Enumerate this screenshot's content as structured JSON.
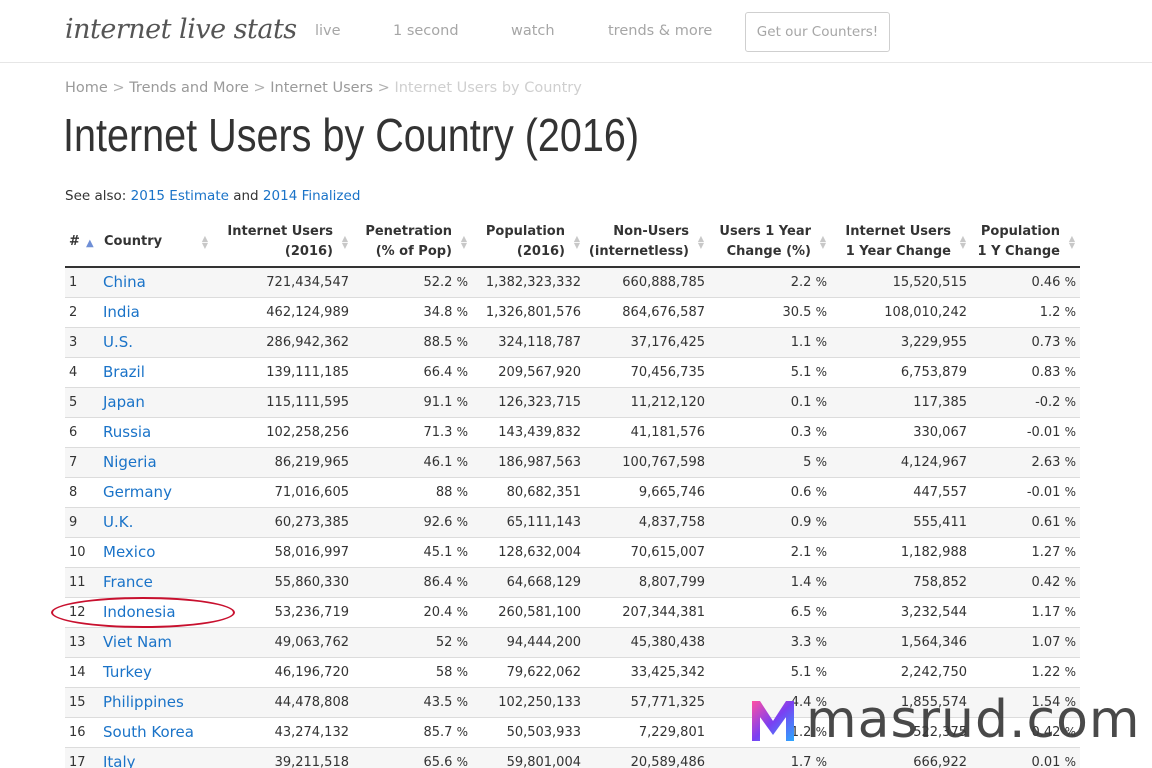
{
  "nav": {
    "logo": "internet live stats",
    "links": [
      "live",
      "1 second",
      "watch",
      "trends & more"
    ],
    "cta": "Get our Counters!"
  },
  "breadcrumb": {
    "items": [
      "Home",
      "Trends and More",
      "Internet Users"
    ],
    "current": "Internet Users by Country",
    "separator": ">"
  },
  "page": {
    "title": "Internet Users by Country (2016)",
    "see_also_prefix": "See also:",
    "link_2015": "2015 Estimate",
    "and": "and",
    "link_2014": "2014 Finalized"
  },
  "table": {
    "headers": {
      "num": "#",
      "country": "Country",
      "internet_users": [
        "Internet Users",
        "(2016)"
      ],
      "penetration": [
        "Penetration",
        "(% of Pop)"
      ],
      "population": [
        "Population",
        "(2016)"
      ],
      "non_users": [
        "Non-Users",
        "(internetless)"
      ],
      "users_change": [
        "Users 1 Year",
        "Change (%)"
      ],
      "iu_change": [
        "Internet Users",
        "1 Year Change"
      ],
      "pop_change": [
        "Population",
        "1 Y Change"
      ]
    },
    "rows": [
      {
        "num": "1",
        "country": "China",
        "users": "721,434,547",
        "pen": "52.2",
        "pop": "1,382,323,332",
        "non": "660,888,785",
        "uch": "2.2",
        "iuc": "15,520,515",
        "pch": "0.46"
      },
      {
        "num": "2",
        "country": "India",
        "users": "462,124,989",
        "pen": "34.8",
        "pop": "1,326,801,576",
        "non": "864,676,587",
        "uch": "30.5",
        "iuc": "108,010,242",
        "pch": "1.2"
      },
      {
        "num": "3",
        "country": "U.S.",
        "users": "286,942,362",
        "pen": "88.5",
        "pop": "324,118,787",
        "non": "37,176,425",
        "uch": "1.1",
        "iuc": "3,229,955",
        "pch": "0.73"
      },
      {
        "num": "4",
        "country": "Brazil",
        "users": "139,111,185",
        "pen": "66.4",
        "pop": "209,567,920",
        "non": "70,456,735",
        "uch": "5.1",
        "iuc": "6,753,879",
        "pch": "0.83"
      },
      {
        "num": "5",
        "country": "Japan",
        "users": "115,111,595",
        "pen": "91.1",
        "pop": "126,323,715",
        "non": "11,212,120",
        "uch": "0.1",
        "iuc": "117,385",
        "pch": "-0.2"
      },
      {
        "num": "6",
        "country": "Russia",
        "users": "102,258,256",
        "pen": "71.3",
        "pop": "143,439,832",
        "non": "41,181,576",
        "uch": "0.3",
        "iuc": "330,067",
        "pch": "-0.01"
      },
      {
        "num": "7",
        "country": "Nigeria",
        "users": "86,219,965",
        "pen": "46.1",
        "pop": "186,987,563",
        "non": "100,767,598",
        "uch": "5",
        "iuc": "4,124,967",
        "pch": "2.63"
      },
      {
        "num": "8",
        "country": "Germany",
        "users": "71,016,605",
        "pen": "88",
        "pop": "80,682,351",
        "non": "9,665,746",
        "uch": "0.6",
        "iuc": "447,557",
        "pch": "-0.01"
      },
      {
        "num": "9",
        "country": "U.K.",
        "users": "60,273,385",
        "pen": "92.6",
        "pop": "65,111,143",
        "non": "4,837,758",
        "uch": "0.9",
        "iuc": "555,411",
        "pch": "0.61"
      },
      {
        "num": "10",
        "country": "Mexico",
        "users": "58,016,997",
        "pen": "45.1",
        "pop": "128,632,004",
        "non": "70,615,007",
        "uch": "2.1",
        "iuc": "1,182,988",
        "pch": "1.27"
      },
      {
        "num": "11",
        "country": "France",
        "users": "55,860,330",
        "pen": "86.4",
        "pop": "64,668,129",
        "non": "8,807,799",
        "uch": "1.4",
        "iuc": "758,852",
        "pch": "0.42"
      },
      {
        "num": "12",
        "country": "Indonesia",
        "users": "53,236,719",
        "pen": "20.4",
        "pop": "260,581,100",
        "non": "207,344,381",
        "uch": "6.5",
        "iuc": "3,232,544",
        "pch": "1.17"
      },
      {
        "num": "13",
        "country": "Viet Nam",
        "users": "49,063,762",
        "pen": "52",
        "pop": "94,444,200",
        "non": "45,380,438",
        "uch": "3.3",
        "iuc": "1,564,346",
        "pch": "1.07"
      },
      {
        "num": "14",
        "country": "Turkey",
        "users": "46,196,720",
        "pen": "58",
        "pop": "79,622,062",
        "non": "33,425,342",
        "uch": "5.1",
        "iuc": "2,242,750",
        "pch": "1.22"
      },
      {
        "num": "15",
        "country": "Philippines",
        "users": "44,478,808",
        "pen": "43.5",
        "pop": "102,250,133",
        "non": "57,771,325",
        "uch": "4.4",
        "iuc": "1,855,574",
        "pch": "1.54"
      },
      {
        "num": "16",
        "country": "South Korea",
        "users": "43,274,132",
        "pen": "85.7",
        "pop": "50,503,933",
        "non": "7,229,801",
        "uch": "1.2",
        "iuc": "522,375",
        "pch": "0.42"
      },
      {
        "num": "17",
        "country": "Italy",
        "users": "39,211,518",
        "pen": "65.6",
        "pop": "59,801,004",
        "non": "20,589,486",
        "uch": "1.7",
        "iuc": "666,922",
        "pch": "0.01"
      }
    ],
    "percent_sign": "%"
  },
  "watermark": {
    "text": "masrud.com",
    "colors": [
      "#ff4fa3",
      "#7b3ff2",
      "#2aa8ff"
    ]
  },
  "highlight": {
    "color": "#c8102e",
    "row": "12"
  }
}
